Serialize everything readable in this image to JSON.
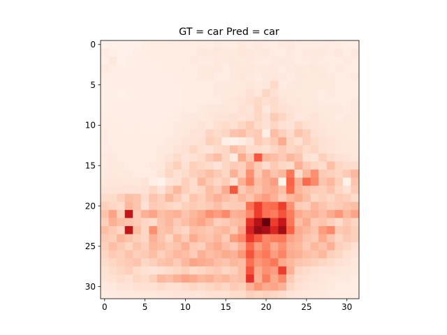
{
  "chart_data": {
    "type": "heatmap",
    "title": "GT = car Pred = car",
    "xlabel": "",
    "ylabel": "",
    "colormap": "Reds",
    "color_low": "#fff5f0",
    "color_high": "#67000d",
    "grid": false,
    "xlim": [
      -0.5,
      31.5
    ],
    "ylim": [
      31.5,
      -0.5
    ],
    "x_ticks": [
      0,
      5,
      10,
      15,
      20,
      25,
      30
    ],
    "x_tick_labels": [
      "0",
      "5",
      "10",
      "15",
      "20",
      "25",
      "30"
    ],
    "y_ticks": [
      0,
      5,
      10,
      15,
      20,
      25,
      30
    ],
    "y_tick_labels": [
      "0",
      "5",
      "10",
      "15",
      "20",
      "25",
      "30"
    ],
    "rows": 32,
    "cols": 32,
    "values": [
      [
        0.02,
        0.03,
        0.02,
        0.02,
        0.03,
        0.04,
        0.05,
        0.05,
        0.05,
        0.06,
        0.06,
        0.05,
        0.06,
        0.05,
        0.07,
        0.06,
        0.05,
        0.08,
        0.06,
        0.07,
        0.06,
        0.05,
        0.07,
        0.08,
        0.06,
        0.05,
        0.05,
        0.06,
        0.06,
        0.05,
        0.04,
        0.04
      ],
      [
        0.06,
        0.04,
        0.03,
        0.03,
        0.04,
        0.05,
        0.05,
        0.05,
        0.05,
        0.06,
        0.06,
        0.06,
        0.08,
        0.07,
        0.08,
        0.07,
        0.07,
        0.09,
        0.08,
        0.07,
        0.08,
        0.06,
        0.06,
        0.07,
        0.06,
        0.08,
        0.07,
        0.07,
        0.06,
        0.08,
        0.05,
        0.08
      ],
      [
        0.04,
        0.08,
        0.03,
        0.04,
        0.04,
        0.04,
        0.05,
        0.05,
        0.05,
        0.05,
        0.05,
        0.07,
        0.06,
        0.06,
        0.08,
        0.07,
        0.08,
        0.07,
        0.08,
        0.06,
        0.06,
        0.07,
        0.08,
        0.07,
        0.06,
        0.06,
        0.07,
        0.06,
        0.06,
        0.05,
        0.07,
        0.06
      ],
      [
        0.07,
        0.05,
        0.04,
        0.04,
        0.04,
        0.05,
        0.04,
        0.05,
        0.05,
        0.05,
        0.06,
        0.06,
        0.07,
        0.07,
        0.08,
        0.06,
        0.08,
        0.08,
        0.08,
        0.07,
        0.07,
        0.08,
        0.06,
        0.07,
        0.08,
        0.07,
        0.08,
        0.07,
        0.06,
        0.07,
        0.06,
        0.05
      ],
      [
        0.05,
        0.04,
        0.04,
        0.04,
        0.04,
        0.04,
        0.04,
        0.04,
        0.04,
        0.05,
        0.05,
        0.06,
        0.07,
        0.07,
        0.06,
        0.06,
        0.08,
        0.09,
        0.07,
        0.06,
        0.08,
        0.09,
        0.07,
        0.06,
        0.08,
        0.08,
        0.07,
        0.08,
        0.07,
        0.06,
        0.06,
        0.07
      ],
      [
        0.04,
        0.04,
        0.04,
        0.04,
        0.04,
        0.04,
        0.04,
        0.04,
        0.04,
        0.05,
        0.05,
        0.06,
        0.06,
        0.06,
        0.07,
        0.07,
        0.07,
        0.07,
        0.09,
        0.07,
        0.08,
        0.15,
        0.06,
        0.07,
        0.08,
        0.07,
        0.07,
        0.07,
        0.07,
        0.06,
        0.06,
        0.06
      ],
      [
        0.04,
        0.04,
        0.03,
        0.04,
        0.04,
        0.04,
        0.04,
        0.04,
        0.04,
        0.04,
        0.05,
        0.05,
        0.06,
        0.06,
        0.07,
        0.07,
        0.07,
        0.08,
        0.12,
        0.09,
        0.16,
        0.12,
        0.08,
        0.08,
        0.07,
        0.07,
        0.07,
        0.06,
        0.07,
        0.06,
        0.06,
        0.06
      ],
      [
        0.04,
        0.04,
        0.04,
        0.04,
        0.04,
        0.04,
        0.04,
        0.04,
        0.04,
        0.04,
        0.05,
        0.05,
        0.05,
        0.06,
        0.06,
        0.08,
        0.09,
        0.11,
        0.13,
        0.15,
        0.13,
        0.14,
        0.1,
        0.08,
        0.09,
        0.07,
        0.08,
        0.06,
        0.06,
        0.06,
        0.06,
        0.07
      ],
      [
        0.04,
        0.04,
        0.04,
        0.04,
        0.04,
        0.04,
        0.04,
        0.04,
        0.04,
        0.05,
        0.06,
        0.06,
        0.07,
        0.08,
        0.09,
        0.09,
        0.08,
        0.12,
        0.1,
        0.16,
        0.08,
        0.14,
        0.12,
        0.1,
        0.09,
        0.08,
        0.08,
        0.07,
        0.07,
        0.07,
        0.06,
        0.07
      ],
      [
        0.05,
        0.05,
        0.04,
        0.04,
        0.04,
        0.04,
        0.04,
        0.04,
        0.05,
        0.05,
        0.07,
        0.08,
        0.07,
        0.09,
        0.1,
        0.1,
        0.12,
        0.1,
        0.12,
        0.16,
        0.12,
        0.2,
        0.16,
        0.12,
        0.08,
        0.09,
        0.1,
        0.08,
        0.07,
        0.06,
        0.07,
        0.07
      ],
      [
        0.05,
        0.05,
        0.05,
        0.04,
        0.05,
        0.04,
        0.04,
        0.05,
        0.06,
        0.07,
        0.07,
        0.08,
        0.1,
        0.08,
        0.13,
        0.14,
        0.12,
        0.16,
        0.2,
        0.14,
        0.12,
        0.16,
        0.12,
        0.1,
        0.16,
        0.12,
        0.1,
        0.09,
        0.08,
        0.07,
        0.07,
        0.07
      ],
      [
        0.06,
        0.05,
        0.05,
        0.05,
        0.05,
        0.05,
        0.05,
        0.05,
        0.06,
        0.07,
        0.08,
        0.1,
        0.1,
        0.16,
        0.14,
        0.16,
        0.22,
        0.24,
        0.18,
        0.2,
        0.04,
        0.24,
        0.18,
        0.14,
        0.22,
        0.18,
        0.12,
        0.1,
        0.08,
        0.08,
        0.07,
        0.07
      ],
      [
        0.06,
        0.05,
        0.05,
        0.05,
        0.05,
        0.05,
        0.06,
        0.06,
        0.07,
        0.08,
        0.1,
        0.1,
        0.12,
        0.18,
        0.16,
        0.04,
        0.02,
        0.05,
        0.1,
        0.2,
        0.16,
        0.2,
        0.3,
        0.16,
        0.12,
        0.18,
        0.14,
        0.12,
        0.1,
        0.09,
        0.08,
        0.08
      ],
      [
        0.06,
        0.06,
        0.05,
        0.05,
        0.05,
        0.05,
        0.06,
        0.07,
        0.07,
        0.1,
        0.12,
        0.16,
        0.12,
        0.1,
        0.14,
        0.16,
        0.24,
        0.2,
        0.14,
        0.14,
        0.12,
        0.16,
        0.2,
        0.16,
        0.18,
        0.14,
        0.16,
        0.12,
        0.1,
        0.09,
        0.08,
        0.08
      ],
      [
        0.07,
        0.07,
        0.06,
        0.06,
        0.06,
        0.06,
        0.06,
        0.07,
        0.1,
        0.14,
        0.1,
        0.12,
        0.14,
        0.2,
        0.24,
        0.16,
        0.06,
        0.3,
        0.2,
        0.55,
        0.26,
        0.24,
        0.2,
        0.26,
        0.22,
        0.12,
        0.1,
        0.18,
        0.14,
        0.12,
        0.1,
        0.09
      ],
      [
        0.07,
        0.07,
        0.07,
        0.06,
        0.06,
        0.06,
        0.07,
        0.08,
        0.14,
        0.18,
        0.12,
        0.18,
        0.16,
        0.14,
        0.1,
        0.16,
        0.2,
        0.18,
        0.28,
        0.2,
        0.14,
        0.2,
        0.16,
        0.14,
        0.28,
        0.2,
        0.16,
        0.14,
        0.24,
        0.16,
        0.14,
        0.14
      ],
      [
        0.08,
        0.08,
        0.07,
        0.07,
        0.06,
        0.06,
        0.06,
        0.1,
        0.16,
        0.12,
        0.14,
        0.18,
        0.2,
        0.24,
        0.2,
        0.16,
        0.28,
        0.18,
        0.38,
        0.2,
        0.3,
        0.22,
        0.26,
        0.46,
        0.14,
        0.26,
        0.38,
        0.2,
        0.18,
        0.16,
        0.2,
        0.26
      ],
      [
        0.09,
        0.09,
        0.09,
        0.08,
        0.08,
        0.1,
        0.04,
        0.02,
        0.1,
        0.12,
        0.18,
        0.14,
        0.26,
        0.2,
        0.16,
        0.2,
        0.12,
        0.28,
        0.42,
        0.24,
        0.28,
        0.34,
        0.02,
        0.52,
        0.28,
        0.5,
        0.4,
        0.22,
        0.26,
        0.18,
        0.02,
        0.22
      ],
      [
        0.1,
        0.1,
        0.1,
        0.1,
        0.1,
        0.12,
        0.16,
        0.1,
        0.18,
        0.26,
        0.18,
        0.14,
        0.16,
        0.24,
        0.2,
        0.3,
        0.55,
        0.2,
        0.26,
        0.22,
        0.28,
        0.3,
        0.24,
        0.5,
        0.26,
        0.22,
        0.2,
        0.18,
        0.22,
        0.16,
        0.12,
        0.2
      ],
      [
        0.14,
        0.14,
        0.18,
        0.24,
        0.22,
        0.14,
        0.22,
        0.18,
        0.26,
        0.2,
        0.14,
        0.22,
        0.18,
        0.24,
        0.28,
        0.24,
        0.2,
        0.26,
        0.22,
        0.3,
        0.34,
        0.28,
        0.2,
        0.26,
        0.3,
        0.24,
        0.16,
        0.18,
        0.16,
        0.2,
        0.18,
        0.14
      ],
      [
        0.18,
        0.16,
        0.14,
        0.26,
        0.22,
        0.12,
        0.2,
        0.18,
        0.16,
        0.14,
        0.18,
        0.2,
        0.18,
        0.2,
        0.24,
        0.18,
        0.2,
        0.2,
        0.48,
        0.62,
        0.48,
        0.5,
        0.62,
        0.38,
        0.2,
        0.18,
        0.26,
        0.22,
        0.18,
        0.2,
        0.22,
        0.24
      ],
      [
        0.22,
        0.32,
        0.18,
        0.78,
        0.2,
        0.28,
        0.32,
        0.24,
        0.26,
        0.28,
        0.22,
        0.26,
        0.3,
        0.38,
        0.34,
        0.4,
        0.28,
        0.3,
        0.4,
        0.62,
        0.48,
        0.44,
        0.56,
        0.44,
        0.3,
        0.26,
        0.28,
        0.24,
        0.3,
        0.36,
        0.26,
        0.32
      ],
      [
        0.18,
        0.28,
        0.24,
        0.22,
        0.2,
        0.16,
        0.14,
        0.22,
        0.26,
        0.2,
        0.24,
        0.28,
        0.32,
        0.26,
        0.18,
        0.2,
        0.24,
        0.26,
        0.66,
        0.82,
        1.0,
        0.62,
        0.76,
        0.46,
        0.24,
        0.3,
        0.2,
        0.22,
        0.18,
        0.14,
        0.2,
        0.16
      ],
      [
        0.24,
        0.2,
        0.16,
        0.78,
        0.24,
        0.16,
        0.38,
        0.22,
        0.24,
        0.18,
        0.16,
        0.24,
        0.22,
        0.2,
        0.24,
        0.26,
        0.2,
        0.32,
        0.72,
        0.9,
        0.86,
        0.7,
        0.88,
        0.52,
        0.3,
        0.26,
        0.22,
        0.34,
        0.4,
        0.2,
        0.22,
        0.18
      ],
      [
        0.2,
        0.18,
        0.26,
        0.22,
        0.18,
        0.16,
        0.28,
        0.22,
        0.16,
        0.26,
        0.2,
        0.3,
        0.24,
        0.22,
        0.26,
        0.2,
        0.34,
        0.4,
        0.64,
        0.54,
        0.4,
        0.44,
        0.46,
        0.32,
        0.28,
        0.22,
        0.2,
        0.3,
        0.22,
        0.16,
        0.2,
        0.18
      ],
      [
        0.18,
        0.24,
        0.2,
        0.16,
        0.22,
        0.18,
        0.26,
        0.24,
        0.2,
        0.22,
        0.28,
        0.2,
        0.18,
        0.26,
        0.3,
        0.24,
        0.2,
        0.28,
        0.5,
        0.34,
        0.42,
        0.3,
        0.38,
        0.28,
        0.26,
        0.2,
        0.26,
        0.22,
        0.28,
        0.18,
        0.16,
        0.12
      ],
      [
        0.16,
        0.2,
        0.18,
        0.22,
        0.18,
        0.2,
        0.24,
        0.18,
        0.22,
        0.26,
        0.24,
        0.2,
        0.28,
        0.24,
        0.26,
        0.3,
        0.28,
        0.36,
        0.56,
        0.4,
        0.46,
        0.34,
        0.42,
        0.3,
        0.28,
        0.24,
        0.22,
        0.26,
        0.18,
        0.16,
        0.12,
        0.1
      ],
      [
        0.14,
        0.16,
        0.18,
        0.2,
        0.22,
        0.16,
        0.18,
        0.22,
        0.24,
        0.2,
        0.26,
        0.32,
        0.3,
        0.28,
        0.24,
        0.22,
        0.26,
        0.24,
        0.48,
        0.36,
        0.4,
        0.46,
        0.3,
        0.26,
        0.22,
        0.2,
        0.18,
        0.16,
        0.14,
        0.12,
        0.1,
        0.08
      ],
      [
        0.12,
        0.14,
        0.16,
        0.18,
        0.14,
        0.12,
        0.1,
        0.12,
        0.14,
        0.16,
        0.18,
        0.14,
        0.16,
        0.18,
        0.2,
        0.16,
        0.18,
        0.24,
        0.56,
        0.3,
        0.38,
        0.34,
        0.62,
        0.28,
        0.16,
        0.14,
        0.12,
        0.1,
        0.1,
        0.09,
        0.08,
        0.07
      ],
      [
        0.1,
        0.12,
        0.14,
        0.12,
        0.16,
        0.14,
        0.18,
        0.26,
        0.24,
        0.28,
        0.32,
        0.3,
        0.26,
        0.28,
        0.24,
        0.26,
        0.22,
        0.24,
        0.66,
        0.28,
        0.44,
        0.3,
        0.4,
        0.2,
        0.14,
        0.12,
        0.1,
        0.09,
        0.08,
        0.07,
        0.07,
        0.06
      ],
      [
        0.08,
        0.08,
        0.1,
        0.1,
        0.12,
        0.12,
        0.12,
        0.14,
        0.12,
        0.12,
        0.14,
        0.16,
        0.14,
        0.16,
        0.18,
        0.16,
        0.2,
        0.18,
        0.28,
        0.36,
        0.3,
        0.32,
        0.28,
        0.16,
        0.12,
        0.1,
        0.09,
        0.08,
        0.07,
        0.06,
        0.06,
        0.05
      ],
      [
        0.06,
        0.06,
        0.07,
        0.07,
        0.08,
        0.08,
        0.08,
        0.09,
        0.09,
        0.1,
        0.1,
        0.1,
        0.1,
        0.12,
        0.12,
        0.12,
        0.14,
        0.14,
        0.18,
        0.16,
        0.18,
        0.16,
        0.14,
        0.1,
        0.09,
        0.08,
        0.07,
        0.07,
        0.06,
        0.05,
        0.05,
        0.05
      ]
    ]
  }
}
